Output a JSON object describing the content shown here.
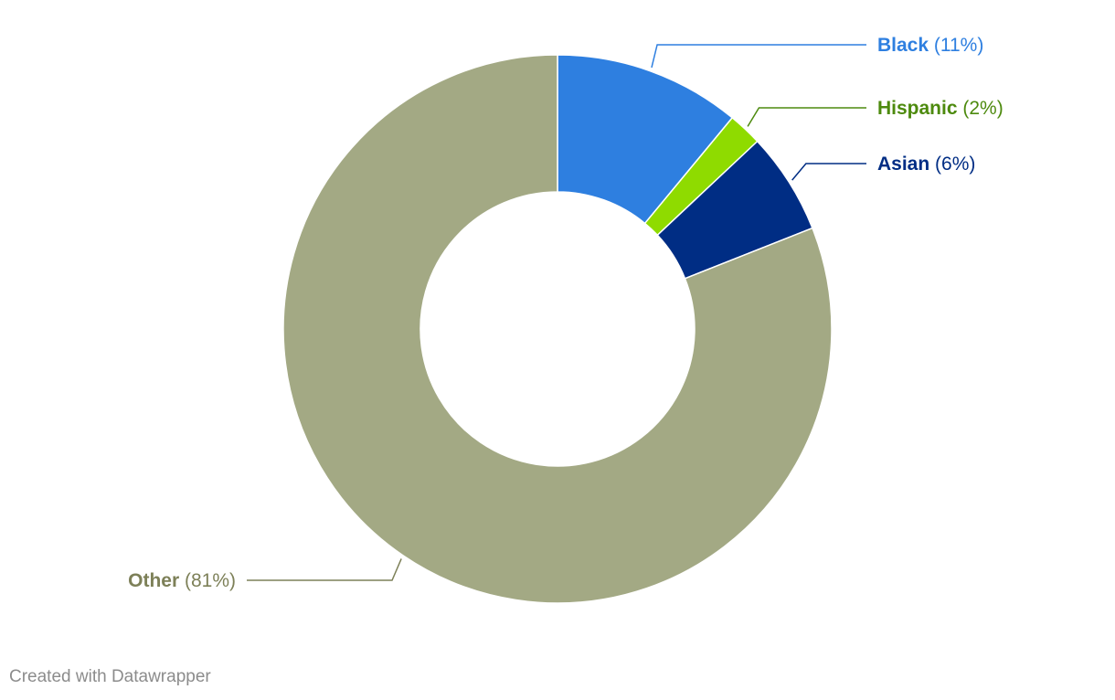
{
  "chart_data": {
    "type": "pie",
    "variant": "donut",
    "title": "",
    "categories": [
      "Black",
      "Hispanic",
      "Asian",
      "Other"
    ],
    "values": [
      11,
      2,
      6,
      81
    ],
    "value_format": "percent",
    "labels": [
      "Black",
      "Hispanic",
      "Asian",
      "Other"
    ],
    "value_labels": [
      "(11%)",
      "(2%)",
      "(6%)",
      "(81%)"
    ],
    "colors": [
      "#2e7fe0",
      "#8fdb00",
      "#002d84",
      "#a3a984"
    ],
    "label_colors": [
      "#2e7fe0",
      "#4d8a0e",
      "#002d84",
      "#7d8058"
    ],
    "legend": "none"
  },
  "footer": {
    "credit": "Created with Datawrapper"
  }
}
